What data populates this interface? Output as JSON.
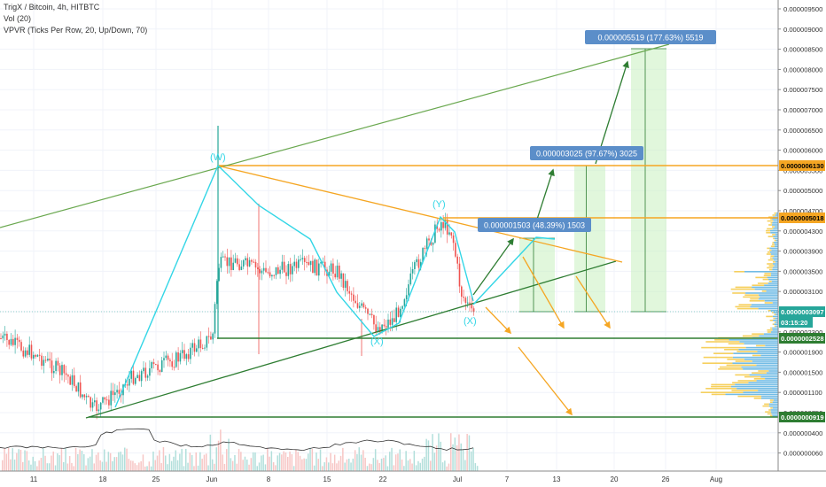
{
  "header": {
    "title": "TrigX / Bitcoin, 4h, HITBTC",
    "vol": "Vol (20)",
    "vpvr": "VPVR (Ticks Per Row, 20, Up/Down, 70)"
  },
  "chart_data": {
    "type": "candlestick",
    "symbol": "TrigX / Bitcoin",
    "interval": "4h",
    "exchange": "HITBTC",
    "y_ticks": [
      "0.000009500",
      "0.000009000",
      "0.000008500",
      "0.000008000",
      "0.000007500",
      "0.000007000",
      "0.000006500",
      "0.000006000",
      "0.000005500",
      "0.000005000",
      "0.000004700",
      "0.000004300",
      "0.000003900",
      "0.000003500",
      "0.000003100",
      "0.000002700",
      "0.000002300",
      "0.000001900",
      "0.000001500",
      "0.000001100",
      "0.000000750",
      "0.000000400",
      "0.000000060"
    ],
    "x_ticks": [
      "11",
      "18",
      "25",
      "Jun",
      "8",
      "15",
      "22",
      "Jul",
      "7",
      "13",
      "20",
      "26",
      "Aug"
    ],
    "price_badges": [
      {
        "label": "0.0000006130",
        "color": "#f5a623",
        "text_color": "#000000"
      },
      {
        "label": "0.0000005018",
        "color": "#f5a623",
        "text_color": "#000000"
      },
      {
        "label": "0.0000003097",
        "color": "#26a69a",
        "text_color": "#ffffff"
      },
      {
        "label": "03:15:20",
        "color": "#26a69a",
        "text_color": "#ffffff"
      },
      {
        "label": "0.0000002528",
        "color": "#2e7d32",
        "text_color": "#ffffff"
      },
      {
        "label": "0.0000000919",
        "color": "#2e7d32",
        "text_color": "#ffffff"
      }
    ],
    "target_labels": [
      "0.000005519 (177.63%) 5519",
      "0.000003025 (97.67%) 3025",
      "0.000001503 (48.39%) 1503"
    ],
    "wave_labels": [
      "(W)",
      "(X)",
      "(Y)",
      "(X)"
    ],
    "colors": {
      "support": "#2e7d32",
      "resistance": "#f5a623",
      "wave": "#33d6e6",
      "bull_candle": "#26a69a",
      "bear_candle": "#ef5350",
      "target_fill": "#c8f0c0"
    }
  }
}
